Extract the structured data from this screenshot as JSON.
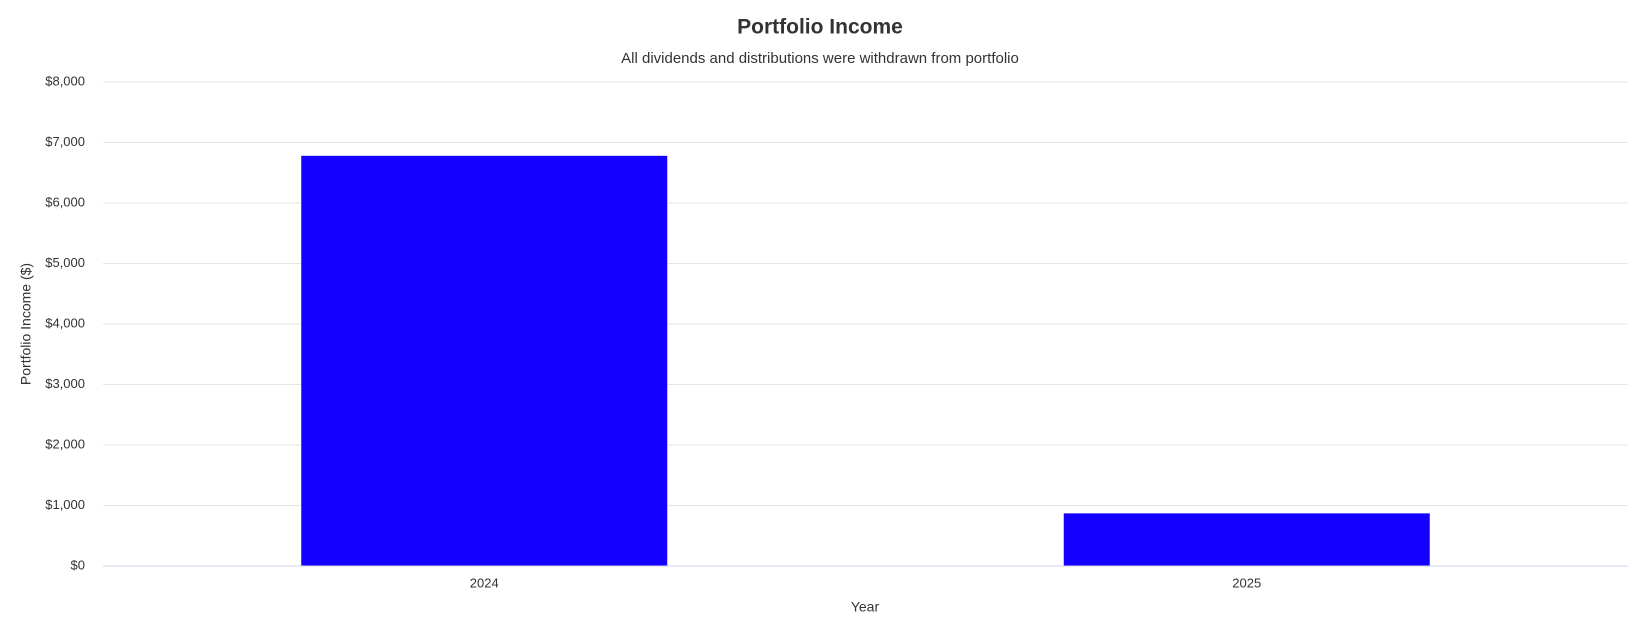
{
  "chart_data": {
    "type": "bar",
    "title": "Portfolio Income",
    "subtitle": "All dividends and distributions were withdrawn from portfolio",
    "x_label": "Year",
    "y_label": "Portfolio Income ($)",
    "categories": [
      "2024",
      "2025"
    ],
    "values": [
      6780,
      870
    ],
    "color": "#1400ff",
    "ylim": [
      0,
      8000
    ],
    "yticks": [
      {
        "value": 0,
        "label": "$0"
      },
      {
        "value": 1000,
        "label": "$1,000"
      },
      {
        "value": 2000,
        "label": "$2,000"
      },
      {
        "value": 3000,
        "label": "$3,000"
      },
      {
        "value": 4000,
        "label": "$4,000"
      },
      {
        "value": 5000,
        "label": "$5,000"
      },
      {
        "value": 6000,
        "label": "$6,000"
      },
      {
        "value": 7000,
        "label": "$7,000"
      },
      {
        "value": 8000,
        "label": "$8,000"
      }
    ],
    "grid": true
  }
}
